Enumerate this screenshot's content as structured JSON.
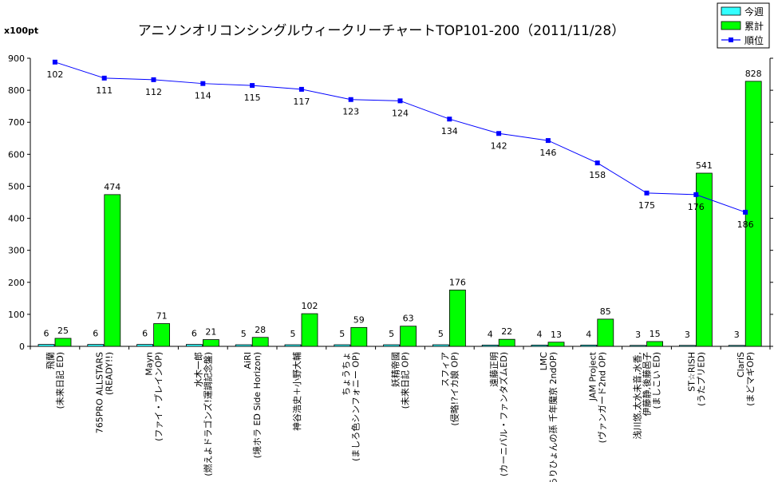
{
  "chart_data": {
    "type": "bar",
    "title": "アニソンオリコンシングルウィークリーチャートTOP101-200（2011/11/28）",
    "unit_label": "x100pt",
    "ylim": [
      0,
      900
    ],
    "yticks": [
      0,
      100,
      200,
      300,
      400,
      500,
      600,
      700,
      800,
      900
    ],
    "grid": false,
    "legend_position": "top-right",
    "categories": [
      [
        "飛蘭",
        "(未来日記 ED)"
      ],
      [
        "765PRO ALLSTARS",
        "(READY!!)"
      ],
      [
        "Mayn",
        "(ファイ・ブレインOP)"
      ],
      [
        "水木一郎",
        "(燃えよドラゴンズ!運調記念盤)"
      ],
      [
        "AiRI",
        "(境ホラ ED Side Horizon)"
      ],
      [
        "神谷浩史＋小野大輔",
        ""
      ],
      [
        "ちょうちょ",
        "(ましろ色シンフォニー OP)"
      ],
      [
        "妖精帝國",
        "(未来日記 OP)"
      ],
      [
        "スフィア",
        "(侵略!?イカ娘 OP)"
      ],
      [
        "遠藤正明",
        "(カーニバル・ファンタズムED)"
      ],
      [
        "LMC",
        "(ぬらりひょんの孫 千年魔京 2ndOP)"
      ],
      [
        "JAM Project",
        "(ヴァンガード2nd OP)"
      ],
      [
        "浅川悠,太水未音,水香,",
        "伊藤静,後藤邑子",
        "(ましこい ED)"
      ],
      [
        "ST☆RISH",
        "(うたプリED)"
      ],
      [
        "ClariS",
        "(まどマギOP)"
      ]
    ],
    "series": [
      {
        "name": "今週",
        "type": "bar",
        "color": "#33ffff",
        "values": [
          6,
          6,
          6,
          6,
          5,
          5,
          5,
          5,
          5,
          4,
          4,
          4,
          3,
          3,
          3
        ]
      },
      {
        "name": "累計",
        "type": "bar",
        "color": "#00ff00",
        "values": [
          25,
          474,
          71,
          21,
          28,
          102,
          59,
          63,
          176,
          22,
          13,
          85,
          15,
          541,
          828
        ]
      },
      {
        "name": "順位",
        "type": "line",
        "color": "#0000ff",
        "values": [
          102,
          111,
          112,
          114,
          115,
          117,
          123,
          124,
          134,
          142,
          146,
          158,
          175,
          176,
          186
        ],
        "plotted": [
          888,
          838,
          833,
          821,
          815,
          803,
          771,
          767,
          710,
          665,
          643,
          573,
          479,
          474,
          419
        ]
      }
    ]
  }
}
